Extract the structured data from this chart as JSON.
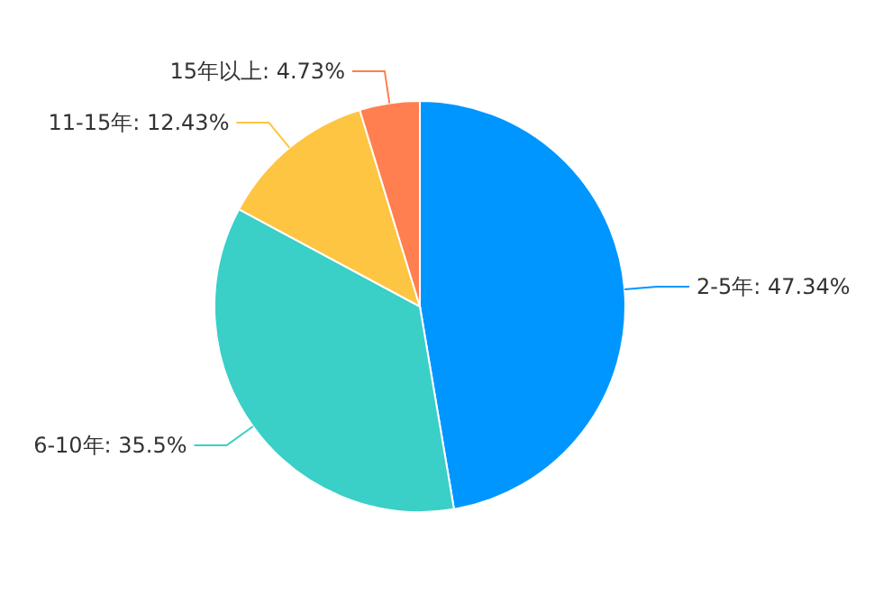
{
  "chart_data": {
    "type": "pie",
    "categories": [
      "2-5年",
      "6-10年",
      "11-15年",
      "15年以上"
    ],
    "values": [
      47.34,
      35.5,
      12.43,
      4.73
    ],
    "value_labels": [
      "47.34%",
      "35.5%",
      "12.43%",
      "4.73%"
    ],
    "colors": [
      "#0096ff",
      "#3acfc7",
      "#fec542",
      "#ff7f50"
    ]
  }
}
